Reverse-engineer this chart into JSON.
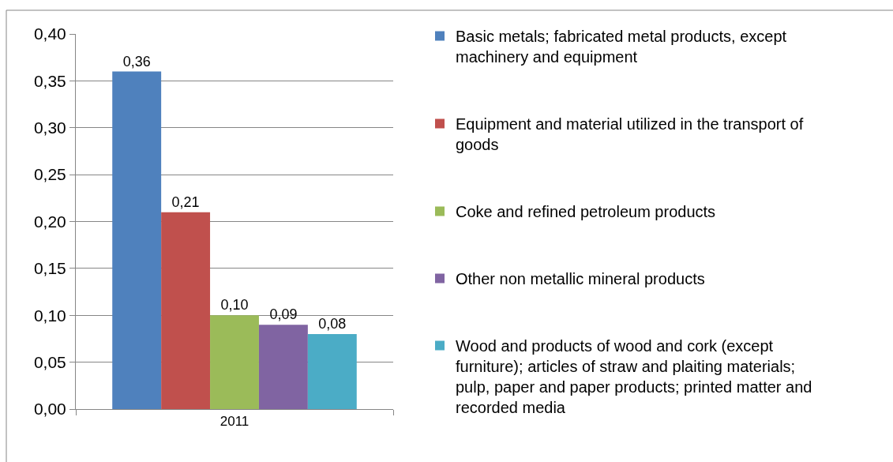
{
  "chart_data": {
    "type": "bar",
    "categories": [
      "2011"
    ],
    "series": [
      {
        "name": "Basic metals; fabricated metal products, except machinery and equipment",
        "color": "#4f81bd",
        "values": [
          0.36
        ],
        "value_labels": [
          "0,36"
        ]
      },
      {
        "name": "Equipment and material utilized in the transport of goods",
        "color": "#c0504d",
        "values": [
          0.21
        ],
        "value_labels": [
          "0,21"
        ]
      },
      {
        "name": "Coke and refined petroleum products",
        "color": "#9bbb59",
        "values": [
          0.1
        ],
        "value_labels": [
          "0,10"
        ]
      },
      {
        "name": "Other non metallic mineral products",
        "color": "#8064a2",
        "values": [
          0.09
        ],
        "value_labels": [
          "0,09"
        ]
      },
      {
        "name": "Wood and products of wood and cork (except furniture); articles of straw and plaiting materials; pulp, paper and paper products; printed matter and recorded media",
        "color": "#4bacc6",
        "values": [
          0.08
        ],
        "value_labels": [
          "0,08"
        ]
      }
    ],
    "ylim": [
      0,
      0.4
    ],
    "yticks": [
      {
        "value": 0,
        "label": "0,00"
      },
      {
        "value": 0.05,
        "label": "0,05"
      },
      {
        "value": 0.1,
        "label": "0,10"
      },
      {
        "value": 0.15,
        "label": "0,15"
      },
      {
        "value": 0.2,
        "label": "0,20"
      },
      {
        "value": 0.25,
        "label": "0,25"
      },
      {
        "value": 0.3,
        "label": "0,30"
      },
      {
        "value": 0.35,
        "label": "0,35"
      },
      {
        "value": 0.4,
        "label": "0,40"
      }
    ],
    "grid": "y",
    "legend": "right"
  }
}
